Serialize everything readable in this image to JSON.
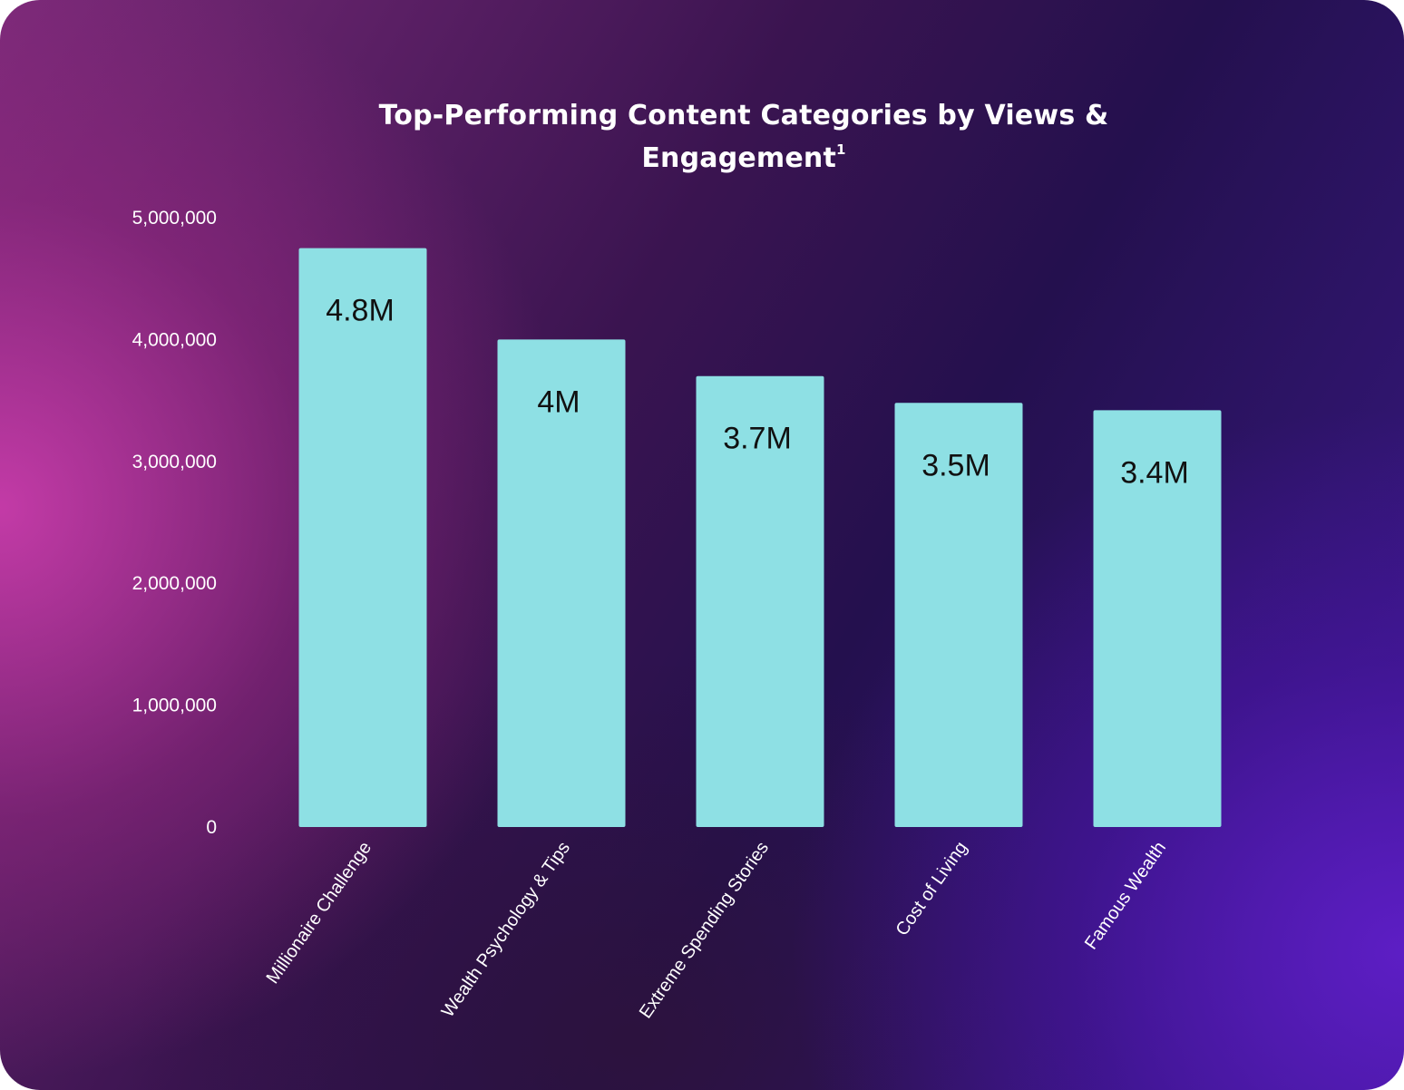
{
  "chart_data": {
    "type": "bar",
    "title": "Top-Performing Content Categories by Views & Engagement",
    "title_superscript": "1",
    "categories": [
      "Millionaire Challenge",
      "Wealth Psychology & Tips",
      "Extreme Spending Stories",
      "Cost of Living",
      "Famous Wealth"
    ],
    "values": [
      4750000,
      4000000,
      3700000,
      3480000,
      3420000
    ],
    "data_labels": [
      "4.8M",
      "4M",
      "3.7M",
      "3.5M",
      "3.4M"
    ],
    "y_ticks": [
      0,
      1000000,
      2000000,
      3000000,
      4000000,
      5000000
    ],
    "y_tick_labels": [
      "0",
      "1,000,000",
      "2,000,000",
      "3,000,000",
      "4,000,000",
      "5,000,000"
    ],
    "ylim": [
      0,
      5000000
    ],
    "xlabel": "",
    "ylabel": "",
    "grid": false,
    "legend": "none",
    "bar_color": "#8ee0e4",
    "data_label_color": "#111111"
  }
}
